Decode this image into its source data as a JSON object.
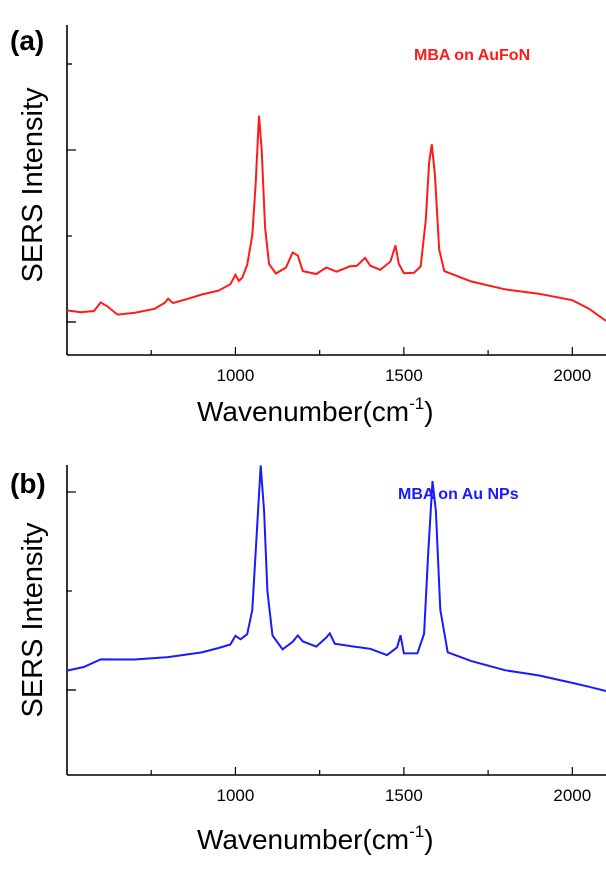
{
  "chart_data": [
    {
      "panel": "(a)",
      "type": "line",
      "annotation": "MBA on AuFoN",
      "xlabel": "Wavenumber(cm",
      "xlabel_superscript": "-1",
      "xlabel_suffix": ")",
      "ylabel": "SERS Intensity",
      "xlim": [
        500,
        2100
      ],
      "xticks": [
        1000,
        1500,
        2000
      ],
      "color": "#ff1a1a",
      "points": [
        [
          500,
          0.07
        ],
        [
          540,
          0.05
        ],
        [
          580,
          0.07
        ],
        [
          600,
          0.12
        ],
        [
          620,
          0.09
        ],
        [
          650,
          0.05
        ],
        [
          700,
          0.06
        ],
        [
          760,
          0.07
        ],
        [
          790,
          0.11
        ],
        [
          800,
          0.14
        ],
        [
          815,
          0.11
        ],
        [
          860,
          0.13
        ],
        [
          900,
          0.16
        ],
        [
          950,
          0.18
        ],
        [
          985,
          0.22
        ],
        [
          1000,
          0.27
        ],
        [
          1010,
          0.24
        ],
        [
          1020,
          0.26
        ],
        [
          1035,
          0.33
        ],
        [
          1050,
          0.5
        ],
        [
          1060,
          0.8
        ],
        [
          1070,
          1.2
        ],
        [
          1078,
          1.0
        ],
        [
          1088,
          0.55
        ],
        [
          1100,
          0.33
        ],
        [
          1120,
          0.28
        ],
        [
          1150,
          0.31
        ],
        [
          1170,
          0.4
        ],
        [
          1185,
          0.38
        ],
        [
          1200,
          0.29
        ],
        [
          1240,
          0.28
        ],
        [
          1270,
          0.31
        ],
        [
          1300,
          0.29
        ],
        [
          1340,
          0.32
        ],
        [
          1360,
          0.33
        ],
        [
          1385,
          0.37
        ],
        [
          1400,
          0.33
        ],
        [
          1430,
          0.31
        ],
        [
          1460,
          0.35
        ],
        [
          1475,
          0.44
        ],
        [
          1485,
          0.34
        ],
        [
          1500,
          0.29
        ],
        [
          1530,
          0.29
        ],
        [
          1550,
          0.33
        ],
        [
          1565,
          0.6
        ],
        [
          1575,
          0.92
        ],
        [
          1583,
          1.04
        ],
        [
          1592,
          0.85
        ],
        [
          1605,
          0.42
        ],
        [
          1620,
          0.3
        ],
        [
          1700,
          0.24
        ],
        [
          1800,
          0.19
        ],
        [
          1900,
          0.16
        ],
        [
          2000,
          0.12
        ],
        [
          2050,
          0.07
        ],
        [
          2100,
          0.0
        ]
      ]
    },
    {
      "panel": "(b)",
      "type": "line",
      "annotation": "MBA on Au NPs",
      "xlabel": "Wavenumber(cm",
      "xlabel_superscript": "-1",
      "xlabel_suffix": ")",
      "ylabel": "SERS Intensity",
      "xlim": [
        500,
        2100
      ],
      "xticks": [
        1000,
        1500,
        2000
      ],
      "color": "#1a1aff",
      "points": [
        [
          500,
          0.1
        ],
        [
          550,
          0.12
        ],
        [
          600,
          0.16
        ],
        [
          700,
          0.16
        ],
        [
          800,
          0.17
        ],
        [
          850,
          0.18
        ],
        [
          900,
          0.19
        ],
        [
          950,
          0.21
        ],
        [
          985,
          0.23
        ],
        [
          1000,
          0.27
        ],
        [
          1015,
          0.25
        ],
        [
          1035,
          0.28
        ],
        [
          1050,
          0.4
        ],
        [
          1062,
          0.75
        ],
        [
          1075,
          1.14
        ],
        [
          1085,
          0.9
        ],
        [
          1095,
          0.5
        ],
        [
          1110,
          0.28
        ],
        [
          1140,
          0.21
        ],
        [
          1170,
          0.24
        ],
        [
          1185,
          0.27
        ],
        [
          1200,
          0.24
        ],
        [
          1240,
          0.22
        ],
        [
          1270,
          0.26
        ],
        [
          1280,
          0.29
        ],
        [
          1295,
          0.24
        ],
        [
          1350,
          0.22
        ],
        [
          1400,
          0.21
        ],
        [
          1450,
          0.18
        ],
        [
          1480,
          0.22
        ],
        [
          1490,
          0.27
        ],
        [
          1500,
          0.19
        ],
        [
          1540,
          0.18
        ],
        [
          1560,
          0.28
        ],
        [
          1572,
          0.68
        ],
        [
          1585,
          1.06
        ],
        [
          1595,
          0.9
        ],
        [
          1608,
          0.4
        ],
        [
          1630,
          0.19
        ],
        [
          1700,
          0.15
        ],
        [
          1800,
          0.1
        ],
        [
          1900,
          0.07
        ],
        [
          2000,
          0.03
        ],
        [
          2050,
          0.01
        ],
        [
          2100,
          -0.01
        ]
      ]
    }
  ]
}
